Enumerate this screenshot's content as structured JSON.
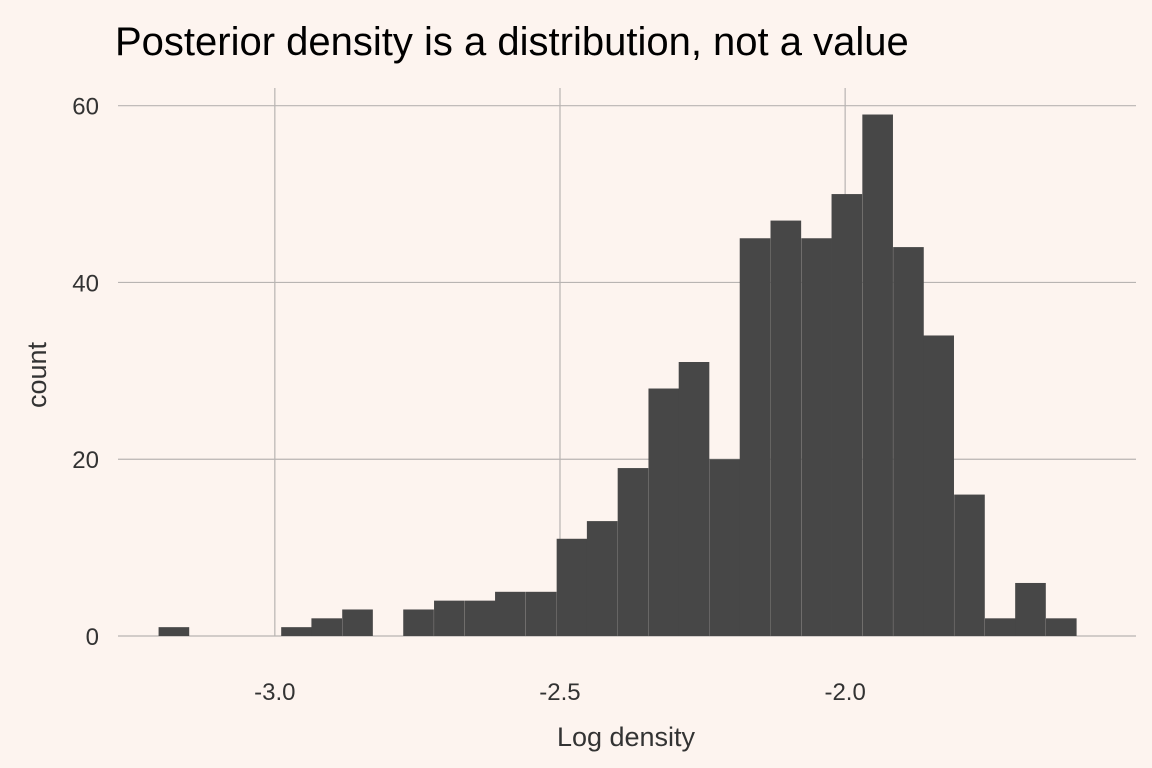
{
  "chart_data": {
    "type": "bar",
    "title": "Posterior density is a distribution, not a value",
    "xlabel": "Log density",
    "ylabel": "count",
    "bin_width": 0.0537,
    "bins": [
      {
        "x": -3.177,
        "count": 1
      },
      {
        "x": -3.123,
        "count": 0
      },
      {
        "x": -3.069,
        "count": 0
      },
      {
        "x": -3.016,
        "count": 0
      },
      {
        "x": -2.962,
        "count": 1
      },
      {
        "x": -2.909,
        "count": 2
      },
      {
        "x": -2.855,
        "count": 3
      },
      {
        "x": -2.801,
        "count": 0
      },
      {
        "x": -2.748,
        "count": 3
      },
      {
        "x": -2.694,
        "count": 4
      },
      {
        "x": -2.64,
        "count": 4
      },
      {
        "x": -2.587,
        "count": 5
      },
      {
        "x": -2.533,
        "count": 5
      },
      {
        "x": -2.479,
        "count": 11
      },
      {
        "x": -2.426,
        "count": 13
      },
      {
        "x": -2.372,
        "count": 19
      },
      {
        "x": -2.318,
        "count": 28
      },
      {
        "x": -2.265,
        "count": 31
      },
      {
        "x": -2.211,
        "count": 20
      },
      {
        "x": -2.158,
        "count": 45
      },
      {
        "x": -2.104,
        "count": 47
      },
      {
        "x": -2.05,
        "count": 45
      },
      {
        "x": -1.997,
        "count": 50
      },
      {
        "x": -1.943,
        "count": 59
      },
      {
        "x": -1.889,
        "count": 44
      },
      {
        "x": -1.836,
        "count": 34
      },
      {
        "x": -1.782,
        "count": 16
      },
      {
        "x": -1.728,
        "count": 2
      },
      {
        "x": -1.675,
        "count": 6
      },
      {
        "x": -1.621,
        "count": 2
      }
    ],
    "xlim": [
      -3.275,
      -1.49
    ],
    "ylim": [
      0,
      62
    ],
    "x_ticks": [
      -3.0,
      -2.5,
      -2.0
    ],
    "x_tick_labels": [
      "-3.0",
      "-2.5",
      "-2.0"
    ],
    "y_ticks": [
      0,
      20,
      40,
      60
    ],
    "y_tick_labels": [
      "0",
      "20",
      "40",
      "60"
    ],
    "grid": true,
    "legend": "none",
    "colors": {
      "background": "#FDF4EF",
      "bar": "#474747",
      "grid": "#B8B4B2",
      "text": "#333333"
    }
  }
}
